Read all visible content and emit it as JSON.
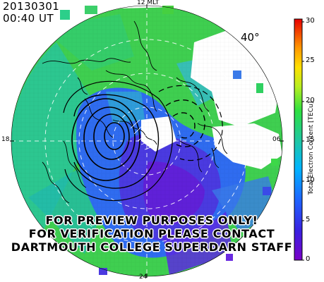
{
  "header": {
    "date": "20130301",
    "time": "00:40  UT",
    "latitude_label": "40°"
  },
  "mlt_labels": {
    "top": "12 MLT",
    "left": "18",
    "right": "06",
    "bottom": "24"
  },
  "colorbar": {
    "title": "Total Electron Content [TECu]",
    "ticks": [
      "30",
      "25",
      "20",
      "15",
      "10",
      "5",
      "0"
    ],
    "range": [
      0,
      30
    ]
  },
  "watermark": [
    "FOR PREVIEW PURPOSES ONLY!",
    "FOR VERIFICATION PLEASE CONTACT",
    "DARTMOUTH COLLEGE SUPERDARN STAFF"
  ],
  "colors": {
    "green_tec": "#3fd14a",
    "teal_tec": "#24b5a8",
    "blue_tec": "#2d5ff0",
    "violet_tec": "#5a1ed8",
    "no_data": "#ffffff"
  }
}
